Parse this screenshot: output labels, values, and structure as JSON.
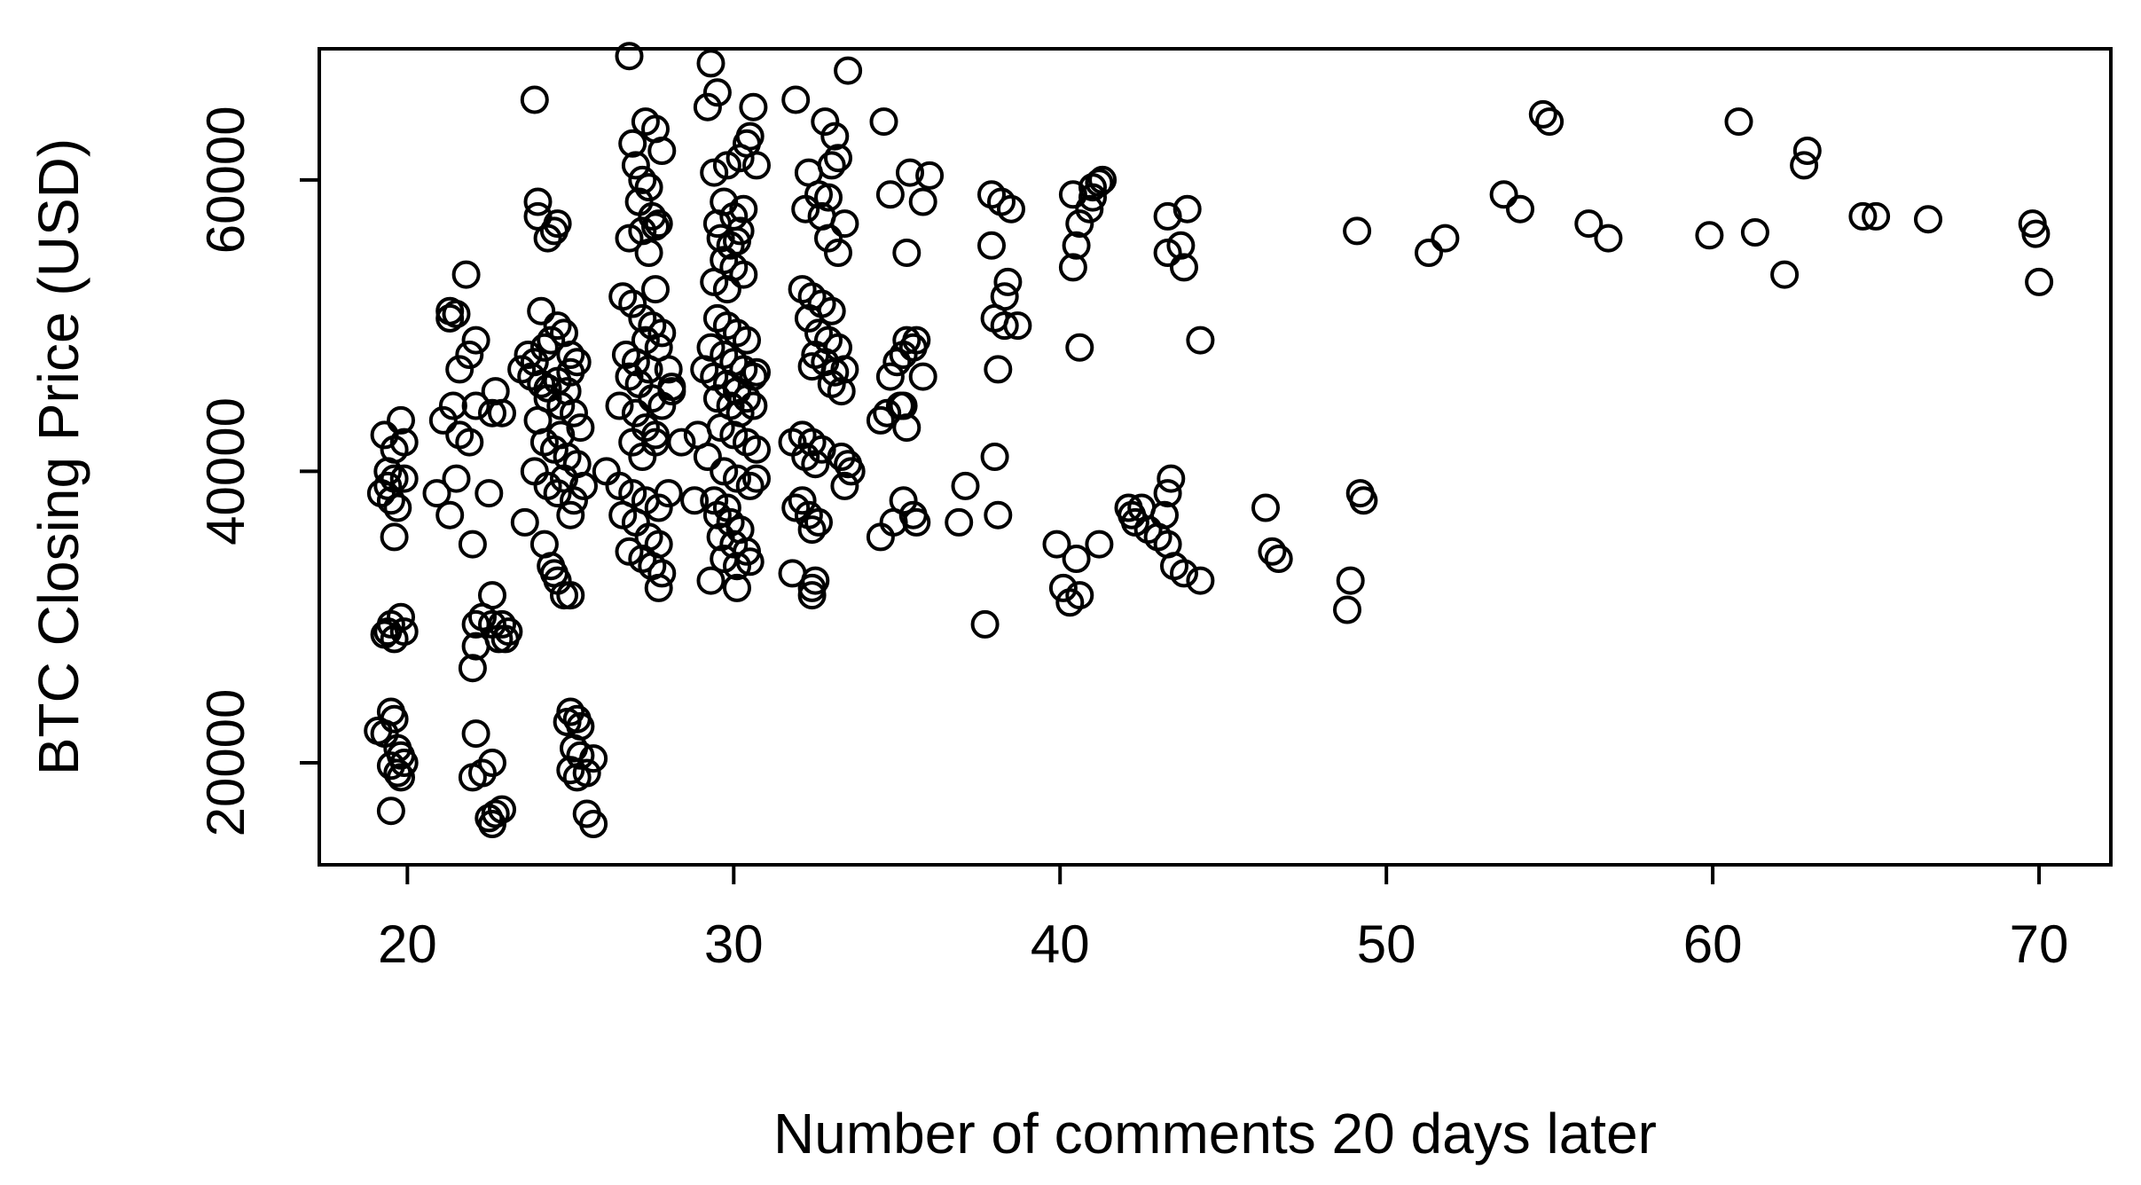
{
  "chart_data": {
    "type": "scatter",
    "title": "",
    "xlabel": "Number of comments 20 days later",
    "ylabel": "BTC Closing Price (USD)",
    "xlim": [
      17.3,
      72.2
    ],
    "ylim": [
      13000,
      69000
    ],
    "x_ticks": [
      20,
      30,
      40,
      50,
      60,
      70
    ],
    "y_ticks": [
      20000,
      40000,
      60000
    ],
    "x_tick_labels": [
      "20",
      "30",
      "40",
      "50",
      "60",
      "70"
    ],
    "y_tick_labels": [
      "20000",
      "40000",
      "60000"
    ],
    "grid": false,
    "legend": "none",
    "marker": "open-circle",
    "color": "#000000",
    "points": [
      [
        19.3,
        42500
      ],
      [
        19.6,
        41500
      ],
      [
        19.8,
        43500
      ],
      [
        19.9,
        42000
      ],
      [
        19.4,
        40000
      ],
      [
        19.6,
        39500
      ],
      [
        19.2,
        38500
      ],
      [
        19.5,
        38000
      ],
      [
        19.7,
        37500
      ],
      [
        19.4,
        39000
      ],
      [
        19.9,
        39500
      ],
      [
        19.6,
        35500
      ],
      [
        19.4,
        29000
      ],
      [
        19.5,
        29500
      ],
      [
        19.8,
        30000
      ],
      [
        19.9,
        29000
      ],
      [
        19.6,
        28500
      ],
      [
        19.3,
        28800
      ],
      [
        19.5,
        23500
      ],
      [
        19.6,
        23000
      ],
      [
        19.3,
        22000
      ],
      [
        19.1,
        22200
      ],
      [
        19.7,
        21000
      ],
      [
        19.8,
        20500
      ],
      [
        19.9,
        20000
      ],
      [
        19.5,
        19800
      ],
      [
        19.7,
        19300
      ],
      [
        19.8,
        19000
      ],
      [
        19.5,
        16700
      ],
      [
        20.9,
        38500
      ],
      [
        21.3,
        37000
      ],
      [
        21.5,
        39500
      ],
      [
        21.1,
        43500
      ],
      [
        21.4,
        44500
      ],
      [
        21.6,
        42500
      ],
      [
        21.9,
        42000
      ],
      [
        21.6,
        47000
      ],
      [
        21.9,
        48000
      ],
      [
        22.1,
        49000
      ],
      [
        21.3,
        50500
      ],
      [
        21.5,
        50800
      ],
      [
        21.3,
        51000
      ],
      [
        21.8,
        53500
      ],
      [
        22.0,
        35000
      ],
      [
        22.1,
        44500
      ],
      [
        22.5,
        38500
      ],
      [
        22.6,
        44000
      ],
      [
        22.7,
        45500
      ],
      [
        22.9,
        44000
      ],
      [
        22.1,
        29500
      ],
      [
        22.3,
        30000
      ],
      [
        22.6,
        31500
      ],
      [
        22.9,
        29500
      ],
      [
        23.1,
        29000
      ],
      [
        22.8,
        28500
      ],
      [
        22.1,
        28000
      ],
      [
        22.0,
        26500
      ],
      [
        22.6,
        29500
      ],
      [
        23.0,
        28500
      ],
      [
        22.1,
        22000
      ],
      [
        22.0,
        19000
      ],
      [
        22.3,
        19300
      ],
      [
        22.6,
        20000
      ],
      [
        22.7,
        16500
      ],
      [
        22.9,
        16800
      ],
      [
        22.6,
        15800
      ],
      [
        22.5,
        16200
      ],
      [
        23.9,
        65500
      ],
      [
        24.0,
        58500
      ],
      [
        24.0,
        57500
      ],
      [
        24.3,
        56000
      ],
      [
        24.5,
        56500
      ],
      [
        24.6,
        57000
      ],
      [
        24.1,
        51000
      ],
      [
        23.5,
        47000
      ],
      [
        23.7,
        48000
      ],
      [
        23.9,
        47500
      ],
      [
        24.2,
        48500
      ],
      [
        24.4,
        49000
      ],
      [
        24.6,
        50000
      ],
      [
        24.8,
        49500
      ],
      [
        25.0,
        48000
      ],
      [
        25.2,
        47500
      ],
      [
        23.8,
        46500
      ],
      [
        24.1,
        46000
      ],
      [
        24.3,
        45000
      ],
      [
        24.7,
        44500
      ],
      [
        24.9,
        45500
      ],
      [
        25.1,
        44000
      ],
      [
        25.3,
        43000
      ],
      [
        24.0,
        43500
      ],
      [
        24.2,
        42000
      ],
      [
        24.5,
        41500
      ],
      [
        24.7,
        42500
      ],
      [
        24.9,
        41000
      ],
      [
        25.2,
        40500
      ],
      [
        23.9,
        40000
      ],
      [
        24.3,
        39000
      ],
      [
        24.6,
        38500
      ],
      [
        24.8,
        39500
      ],
      [
        25.1,
        38000
      ],
      [
        25.4,
        39000
      ],
      [
        25.0,
        37000
      ],
      [
        23.6,
        36500
      ],
      [
        24.2,
        35000
      ],
      [
        24.4,
        33500
      ],
      [
        24.5,
        33000
      ],
      [
        24.6,
        32500
      ],
      [
        24.8,
        31500
      ],
      [
        25.0,
        31500
      ],
      [
        24.3,
        45700
      ],
      [
        24.6,
        46200
      ],
      [
        25.0,
        46800
      ],
      [
        25.0,
        23500
      ],
      [
        25.2,
        23000
      ],
      [
        25.3,
        22500
      ],
      [
        24.9,
        22800
      ],
      [
        25.1,
        21000
      ],
      [
        25.3,
        20500
      ],
      [
        25.0,
        19500
      ],
      [
        25.2,
        19000
      ],
      [
        25.5,
        19300
      ],
      [
        25.7,
        20300
      ],
      [
        25.5,
        16500
      ],
      [
        25.7,
        15800
      ],
      [
        26.8,
        68500
      ],
      [
        26.9,
        62500
      ],
      [
        27.3,
        64000
      ],
      [
        27.6,
        63500
      ],
      [
        27.8,
        62000
      ],
      [
        27.0,
        61000
      ],
      [
        27.2,
        60000
      ],
      [
        27.4,
        59500
      ],
      [
        27.1,
        58500
      ],
      [
        27.5,
        57500
      ],
      [
        27.7,
        57000
      ],
      [
        27.2,
        56500
      ],
      [
        26.8,
        56000
      ],
      [
        27.4,
        55000
      ],
      [
        27.6,
        56800
      ],
      [
        26.6,
        52000
      ],
      [
        26.9,
        51500
      ],
      [
        27.2,
        50500
      ],
      [
        27.5,
        50000
      ],
      [
        27.6,
        52500
      ],
      [
        27.8,
        49500
      ],
      [
        27.3,
        49000
      ],
      [
        26.7,
        48000
      ],
      [
        27.0,
        47500
      ],
      [
        27.4,
        47000
      ],
      [
        27.7,
        48500
      ],
      [
        28.0,
        47000
      ],
      [
        26.8,
        46500
      ],
      [
        27.1,
        46000
      ],
      [
        27.5,
        45000
      ],
      [
        27.8,
        44500
      ],
      [
        28.1,
        45500
      ],
      [
        26.5,
        44500
      ],
      [
        27.0,
        44000
      ],
      [
        27.3,
        43000
      ],
      [
        27.6,
        42500
      ],
      [
        26.9,
        42000
      ],
      [
        27.2,
        41000
      ],
      [
        27.6,
        42000
      ],
      [
        26.1,
        40000
      ],
      [
        26.5,
        39000
      ],
      [
        26.9,
        38500
      ],
      [
        27.3,
        38000
      ],
      [
        27.7,
        37500
      ],
      [
        28.0,
        38500
      ],
      [
        26.6,
        37000
      ],
      [
        27.0,
        36500
      ],
      [
        27.4,
        35500
      ],
      [
        27.7,
        35000
      ],
      [
        26.8,
        34500
      ],
      [
        27.2,
        34000
      ],
      [
        27.5,
        33500
      ],
      [
        27.8,
        33000
      ],
      [
        27.7,
        32000
      ],
      [
        28.1,
        45800
      ],
      [
        28.4,
        42000
      ],
      [
        28.8,
        38000
      ],
      [
        29.3,
        68000
      ],
      [
        29.5,
        66000
      ],
      [
        29.2,
        65000
      ],
      [
        29.4,
        60500
      ],
      [
        29.8,
        61000
      ],
      [
        29.7,
        58500
      ],
      [
        29.5,
        57000
      ],
      [
        30.0,
        57500
      ],
      [
        30.3,
        58000
      ],
      [
        29.6,
        56000
      ],
      [
        29.9,
        55500
      ],
      [
        30.2,
        56500
      ],
      [
        29.7,
        54500
      ],
      [
        30.0,
        54000
      ],
      [
        30.3,
        53500
      ],
      [
        29.4,
        53000
      ],
      [
        29.8,
        52500
      ],
      [
        30.1,
        55800
      ],
      [
        30.2,
        61500
      ],
      [
        30.4,
        62500
      ],
      [
        30.6,
        65000
      ],
      [
        30.5,
        63000
      ],
      [
        30.7,
        61000
      ],
      [
        29.5,
        50500
      ],
      [
        29.8,
        50000
      ],
      [
        30.1,
        49500
      ],
      [
        30.4,
        49000
      ],
      [
        29.3,
        48500
      ],
      [
        29.7,
        48000
      ],
      [
        30.0,
        47500
      ],
      [
        30.3,
        47000
      ],
      [
        30.6,
        46500
      ],
      [
        29.1,
        47000
      ],
      [
        29.4,
        46500
      ],
      [
        29.8,
        46000
      ],
      [
        30.1,
        45500
      ],
      [
        30.4,
        45000
      ],
      [
        30.7,
        46800
      ],
      [
        29.5,
        45000
      ],
      [
        29.9,
        44500
      ],
      [
        30.2,
        44000
      ],
      [
        30.6,
        44500
      ],
      [
        29.6,
        43000
      ],
      [
        30.0,
        42500
      ],
      [
        30.4,
        42000
      ],
      [
        30.7,
        41500
      ],
      [
        28.9,
        42500
      ],
      [
        29.2,
        41000
      ],
      [
        29.7,
        40000
      ],
      [
        30.1,
        39500
      ],
      [
        30.5,
        39000
      ],
      [
        30.7,
        39500
      ],
      [
        29.4,
        38000
      ],
      [
        29.8,
        37500
      ],
      [
        29.5,
        37000
      ],
      [
        29.9,
        36500
      ],
      [
        30.2,
        36000
      ],
      [
        29.6,
        35500
      ],
      [
        30.0,
        35000
      ],
      [
        30.4,
        34500
      ],
      [
        29.7,
        34000
      ],
      [
        30.1,
        33500
      ],
      [
        29.3,
        32500
      ],
      [
        30.5,
        33800
      ],
      [
        30.1,
        32000
      ],
      [
        31.9,
        65500
      ],
      [
        32.3,
        60500
      ],
      [
        32.6,
        59000
      ],
      [
        32.2,
        58000
      ],
      [
        32.7,
        57500
      ],
      [
        32.9,
        58800
      ],
      [
        33.1,
        63000
      ],
      [
        32.8,
        64000
      ],
      [
        33.2,
        61500
      ],
      [
        33.0,
        61000
      ],
      [
        33.4,
        57000
      ],
      [
        32.9,
        56000
      ],
      [
        33.2,
        55000
      ],
      [
        33.5,
        67500
      ],
      [
        32.1,
        52500
      ],
      [
        32.4,
        52000
      ],
      [
        32.7,
        51500
      ],
      [
        33.0,
        51000
      ],
      [
        32.3,
        50500
      ],
      [
        32.6,
        49500
      ],
      [
        32.9,
        49000
      ],
      [
        33.2,
        48500
      ],
      [
        32.5,
        48000
      ],
      [
        32.8,
        47500
      ],
      [
        33.1,
        46800
      ],
      [
        33.4,
        47000
      ],
      [
        33.0,
        46000
      ],
      [
        33.3,
        45500
      ],
      [
        32.4,
        47200
      ],
      [
        31.8,
        42000
      ],
      [
        32.1,
        42500
      ],
      [
        32.4,
        42000
      ],
      [
        32.7,
        41500
      ],
      [
        32.2,
        41000
      ],
      [
        32.5,
        40500
      ],
      [
        33.3,
        41000
      ],
      [
        33.5,
        40500
      ],
      [
        33.4,
        39000
      ],
      [
        32.1,
        38000
      ],
      [
        31.9,
        37500
      ],
      [
        32.3,
        37000
      ],
      [
        32.6,
        36500
      ],
      [
        32.4,
        36000
      ],
      [
        31.8,
        33000
      ],
      [
        32.5,
        32500
      ],
      [
        32.4,
        31500
      ],
      [
        32.4,
        32000
      ],
      [
        34.5,
        43500
      ],
      [
        34.7,
        44000
      ],
      [
        35.1,
        44500
      ],
      [
        35.3,
        43000
      ],
      [
        35.2,
        44500
      ],
      [
        34.8,
        46500
      ],
      [
        35.2,
        48000
      ],
      [
        35.5,
        48500
      ],
      [
        35.6,
        49000
      ],
      [
        35.8,
        46500
      ],
      [
        35.0,
        47500
      ],
      [
        35.3,
        49000
      ],
      [
        35.4,
        60500
      ],
      [
        36.0,
        60300
      ],
      [
        34.8,
        59000
      ],
      [
        35.8,
        58500
      ],
      [
        35.3,
        55000
      ],
      [
        34.6,
        64000
      ],
      [
        34.5,
        35500
      ],
      [
        34.9,
        36500
      ],
      [
        35.2,
        38000
      ],
      [
        35.5,
        37000
      ],
      [
        35.6,
        36500
      ],
      [
        33.6,
        40000
      ],
      [
        36.9,
        36500
      ],
      [
        37.1,
        39000
      ],
      [
        37.7,
        29500
      ],
      [
        37.9,
        59000
      ],
      [
        37.9,
        55500
      ],
      [
        38.0,
        50500
      ],
      [
        38.3,
        50000
      ],
      [
        38.3,
        52000
      ],
      [
        38.4,
        53000
      ],
      [
        38.7,
        50000
      ],
      [
        38.1,
        47000
      ],
      [
        38.0,
        41000
      ],
      [
        38.1,
        37000
      ],
      [
        38.2,
        58500
      ],
      [
        38.5,
        58000
      ],
      [
        39.9,
        35000
      ],
      [
        40.1,
        32000
      ],
      [
        40.3,
        31000
      ],
      [
        40.6,
        31500
      ],
      [
        40.5,
        34000
      ],
      [
        41.2,
        35000
      ],
      [
        40.4,
        54000
      ],
      [
        40.5,
        55500
      ],
      [
        40.6,
        57000
      ],
      [
        40.6,
        48500
      ],
      [
        40.4,
        59000
      ],
      [
        41.0,
        59500
      ],
      [
        40.9,
        58000
      ],
      [
        41.2,
        59800
      ],
      [
        41.0,
        58800
      ],
      [
        41.3,
        60000
      ],
      [
        42.1,
        37500
      ],
      [
        42.2,
        37000
      ],
      [
        42.3,
        36500
      ],
      [
        42.5,
        37500
      ],
      [
        42.7,
        36000
      ],
      [
        43.0,
        35500
      ],
      [
        43.3,
        35000
      ],
      [
        43.5,
        33500
      ],
      [
        43.8,
        33000
      ],
      [
        44.3,
        32500
      ],
      [
        43.2,
        37000
      ],
      [
        43.3,
        38500
      ],
      [
        43.4,
        39500
      ],
      [
        43.3,
        57500
      ],
      [
        43.9,
        58000
      ],
      [
        43.7,
        55500
      ],
      [
        43.3,
        55000
      ],
      [
        43.8,
        54000
      ],
      [
        44.3,
        49000
      ],
      [
        46.3,
        37500
      ],
      [
        46.5,
        34500
      ],
      [
        46.7,
        34000
      ],
      [
        48.8,
        30500
      ],
      [
        48.9,
        32500
      ],
      [
        49.2,
        38500
      ],
      [
        49.3,
        38000
      ],
      [
        49.1,
        56500
      ],
      [
        51.3,
        55000
      ],
      [
        51.8,
        56000
      ],
      [
        53.6,
        59000
      ],
      [
        54.1,
        58000
      ],
      [
        54.8,
        64500
      ],
      [
        55.0,
        64000
      ],
      [
        56.2,
        57000
      ],
      [
        56.8,
        56000
      ],
      [
        59.9,
        56200
      ],
      [
        60.8,
        64000
      ],
      [
        61.3,
        56400
      ],
      [
        62.2,
        53500
      ],
      [
        62.8,
        61000
      ],
      [
        62.9,
        62000
      ],
      [
        64.6,
        57500
      ],
      [
        65.0,
        57500
      ],
      [
        66.6,
        57300
      ],
      [
        69.8,
        57000
      ],
      [
        69.9,
        56300
      ],
      [
        70.0,
        53000
      ]
    ]
  }
}
